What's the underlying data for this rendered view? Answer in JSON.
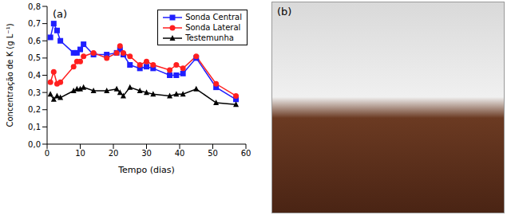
{
  "chart_data": {
    "type": "line",
    "annotations": [
      "(a)"
    ],
    "x_label": "Tempo (dias)",
    "y_label": "Concentração de K (g L⁻¹)",
    "x": [
      1,
      2,
      3,
      4,
      8,
      9,
      10,
      11,
      14,
      18,
      21,
      22,
      23,
      25,
      28,
      30,
      32,
      37,
      39,
      41,
      45,
      51,
      57
    ],
    "series": [
      {
        "name": "Sonda Central",
        "color": "#1f1fff",
        "marker": "square",
        "values": [
          0.62,
          0.7,
          0.66,
          0.6,
          0.53,
          0.53,
          0.55,
          0.58,
          0.52,
          0.52,
          0.53,
          0.55,
          0.52,
          0.46,
          0.44,
          0.45,
          0.44,
          0.4,
          0.4,
          0.41,
          0.5,
          0.33,
          0.26
        ]
      },
      {
        "name": "Sonda Lateral",
        "color": "#ff1f1f",
        "marker": "circle",
        "values": [
          0.36,
          0.42,
          0.35,
          0.36,
          0.45,
          0.48,
          0.48,
          0.51,
          0.53,
          0.5,
          0.53,
          0.57,
          0.53,
          0.51,
          0.46,
          0.48,
          0.46,
          0.43,
          0.46,
          0.44,
          0.51,
          0.35,
          0.28
        ]
      },
      {
        "name": "Testemunha",
        "color": "#000000",
        "marker": "triangle",
        "values": [
          0.29,
          0.26,
          0.28,
          0.27,
          0.31,
          0.32,
          0.32,
          0.33,
          0.31,
          0.31,
          0.32,
          0.3,
          0.28,
          0.33,
          0.31,
          0.3,
          0.29,
          0.28,
          0.29,
          0.29,
          0.32,
          0.24,
          0.23
        ]
      }
    ],
    "xlim": [
      0,
      60
    ],
    "xticks": [
      0,
      10,
      20,
      30,
      40,
      50,
      60
    ],
    "ylim": [
      0,
      0.8
    ],
    "yticks": [
      {
        "value": 0,
        "label": "0,0"
      },
      {
        "value": 0.1,
        "label": "0,1"
      },
      {
        "value": 0.2,
        "label": "0,2"
      },
      {
        "value": 0.3,
        "label": "0,3"
      },
      {
        "value": 0.4,
        "label": "0,4"
      },
      {
        "value": 0.5,
        "label": "0,5"
      },
      {
        "value": 0.6,
        "label": "0,6"
      },
      {
        "value": 0.7,
        "label": "0,7"
      },
      {
        "value": 0.8,
        "label": "0,8"
      }
    ],
    "legend": "upper right",
    "grid": false
  },
  "image": {
    "label": "(b)"
  }
}
